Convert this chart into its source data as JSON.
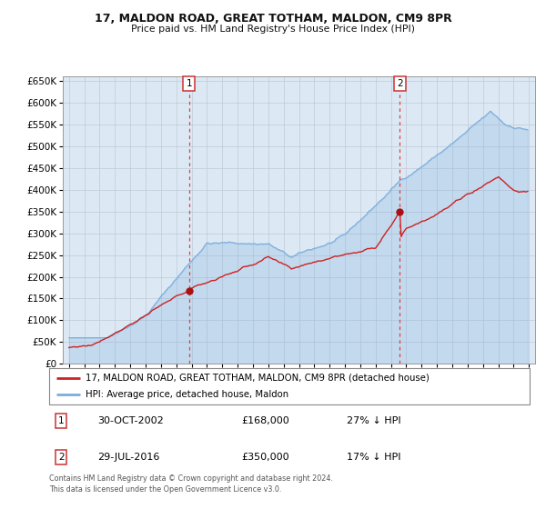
{
  "title": "17, MALDON ROAD, GREAT TOTHAM, MALDON, CM9 8PR",
  "subtitle": "Price paid vs. HM Land Registry's House Price Index (HPI)",
  "property_label": "17, MALDON ROAD, GREAT TOTHAM, MALDON, CM9 8PR (detached house)",
  "hpi_label": "HPI: Average price, detached house, Maldon",
  "sale1_date": "30-OCT-2002",
  "sale1_price": 168000,
  "sale1_pct": "27% ↓ HPI",
  "sale2_date": "29-JUL-2016",
  "sale2_price": 350000,
  "sale2_pct": "17% ↓ HPI",
  "marker1_year": 2002.83,
  "marker2_year": 2016.58,
  "hpi_color": "#7aaddc",
  "property_color": "#cc2222",
  "marker_color": "#aa1111",
  "dashed_color": "#dd4444",
  "bg_color": "#dce9f5",
  "plot_bg": "#ffffff",
  "grid_color": "#c0c8d8",
  "ylim": [
    0,
    660000
  ],
  "yticks": [
    0,
    50000,
    100000,
    150000,
    200000,
    250000,
    300000,
    350000,
    400000,
    450000,
    500000,
    550000,
    600000,
    650000
  ],
  "footer": "Contains HM Land Registry data © Crown copyright and database right 2024.\nThis data is licensed under the Open Government Licence v3.0.",
  "xstart": 1995,
  "xend": 2025
}
